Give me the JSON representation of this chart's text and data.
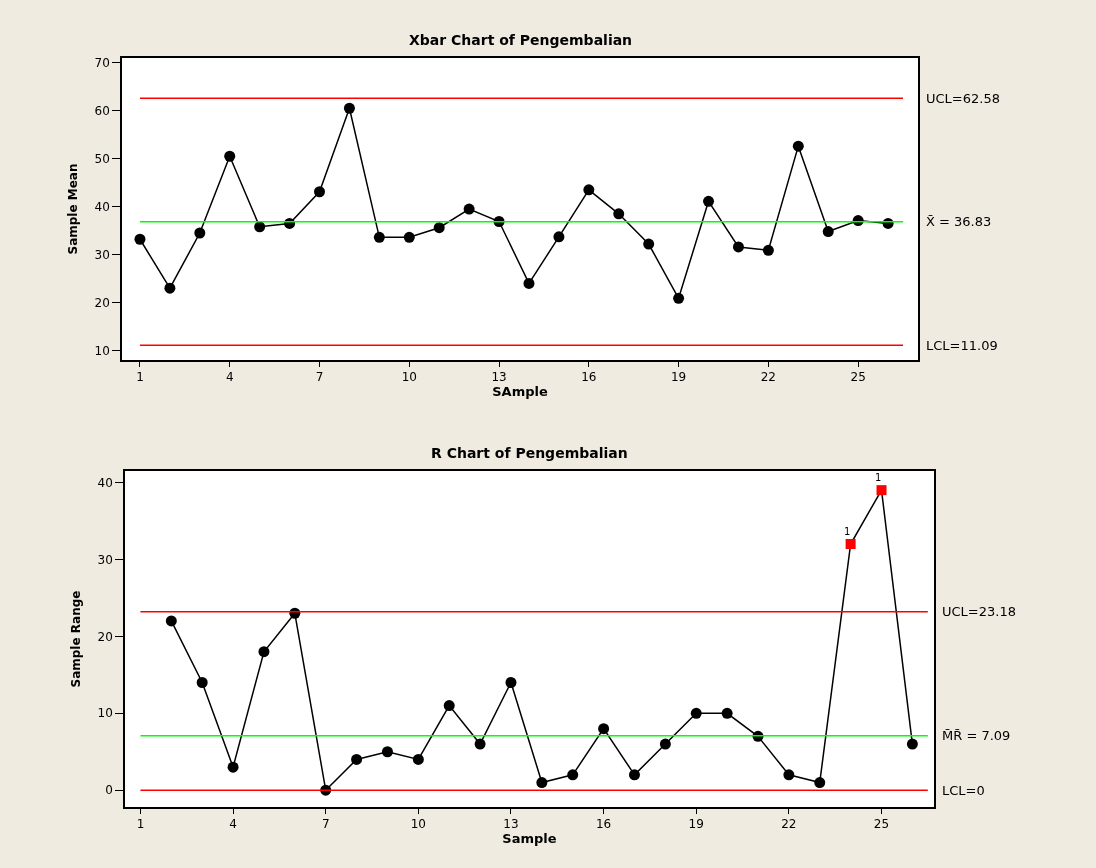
{
  "chart_data": [
    {
      "type": "line",
      "title": "Xbar Chart of Pengembalian",
      "xlabel": "SAmple",
      "ylabel": "Sample Mean",
      "x": [
        1,
        2,
        3,
        4,
        5,
        6,
        7,
        8,
        9,
        10,
        11,
        12,
        13,
        14,
        15,
        16,
        17,
        18,
        19,
        20,
        21,
        22,
        23,
        24,
        25,
        26
      ],
      "series": [
        {
          "color": "#000000",
          "marker": "circle",
          "values": [
            33.2,
            23.0,
            34.5,
            50.5,
            35.8,
            36.5,
            43.1,
            60.5,
            33.6,
            33.6,
            35.6,
            39.5,
            36.9,
            24.0,
            33.7,
            43.5,
            38.5,
            32.2,
            20.9,
            41.1,
            31.6,
            30.9,
            52.6,
            34.8,
            37.1,
            36.5
          ]
        }
      ],
      "ref_lines": [
        {
          "axis": "y",
          "value": 62.58,
          "label": "UCL=62.58",
          "color": "#ff0000"
        },
        {
          "axis": "y",
          "value": 36.83,
          "label": "X̄ = 36.83",
          "color": "#00ff00"
        },
        {
          "axis": "y",
          "value": 11.09,
          "label": "LCL=11.09",
          "color": "#ff0000"
        }
      ],
      "xlim": [
        0.4,
        27.0
      ],
      "xticks": [
        1,
        4,
        7,
        10,
        13,
        16,
        19,
        22,
        25
      ],
      "ylim": [
        8.0,
        71.0
      ],
      "yticks": [
        10,
        20,
        30,
        40,
        50,
        60,
        70
      ]
    },
    {
      "type": "line",
      "title": "R Chart of Pengembalian",
      "xlabel": "Sample",
      "ylabel": "Sample Range",
      "x": [
        2,
        3,
        4,
        5,
        6,
        7,
        8,
        9,
        10,
        11,
        12,
        13,
        14,
        15,
        16,
        17,
        18,
        19,
        20,
        21,
        22,
        23,
        24,
        25,
        26
      ],
      "series": [
        {
          "color": "#000000",
          "marker": "none",
          "values": [
            22,
            14,
            3,
            18,
            23,
            0,
            4,
            5,
            4,
            11,
            6,
            14,
            1,
            2,
            8,
            2,
            6,
            10,
            10,
            7,
            2,
            1,
            32,
            39,
            6
          ]
        },
        {
          "type": "scatter",
          "color": "#000000",
          "marker": "circle",
          "values": [
            22,
            14,
            3,
            18,
            23,
            0,
            4,
            5,
            4,
            11,
            6,
            14,
            1,
            2,
            8,
            2,
            6,
            10,
            10,
            7,
            2,
            1,
            null,
            null,
            6
          ]
        },
        {
          "type": "scatter",
          "color": "#ff0000",
          "marker": "square",
          "x": [
            24,
            25
          ],
          "values": [
            32,
            39
          ]
        }
      ],
      "annotations": [
        {
          "text": "1",
          "x": 24,
          "y": 32
        },
        {
          "text": "1",
          "x": 25,
          "y": 39
        }
      ],
      "ref_lines": [
        {
          "axis": "y",
          "value": 23.18,
          "label": "UCL=23.18",
          "color": "#ff0000"
        },
        {
          "axis": "y",
          "value": 7.09,
          "label": "M̄R̄ = 7.09",
          "color": "#00ff00"
        },
        {
          "axis": "y",
          "value": 0,
          "label": "LCL=0",
          "color": "#ff0000"
        }
      ],
      "xlim": [
        0.5,
        26.7
      ],
      "xticks": [
        1,
        4,
        7,
        10,
        13,
        16,
        19,
        22,
        25
      ],
      "ylim": [
        -2.2,
        41.5
      ],
      "yticks": [
        0,
        10,
        20,
        30,
        40
      ]
    }
  ]
}
